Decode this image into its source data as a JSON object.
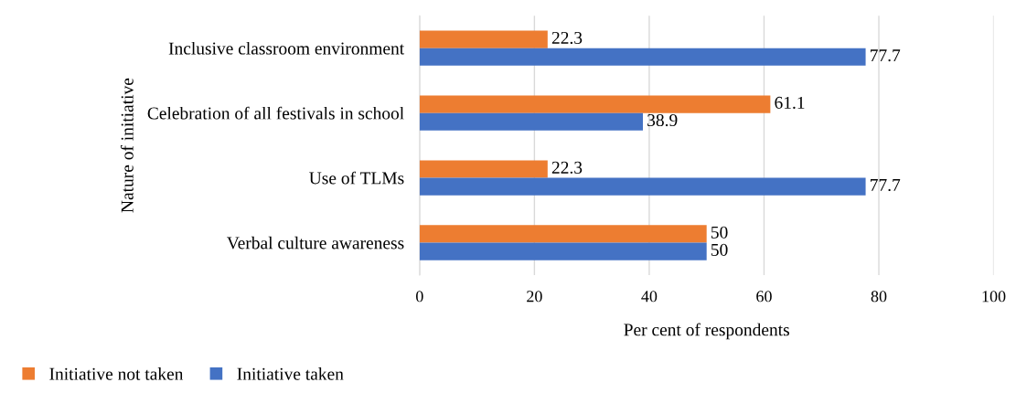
{
  "chart_data": {
    "type": "bar",
    "orientation": "horizontal",
    "xlabel": "Per cent of respondents",
    "ylabel": "Nature of initiative",
    "categories": [
      "Inclusive classroom environment",
      "Celebration of all festivals in school",
      "Use of TLMs",
      "Verbal culture awareness"
    ],
    "series": [
      {
        "name": "Initiative not taken",
        "color": "#ed7d31",
        "values": [
          22.3,
          61.1,
          22.3,
          50
        ]
      },
      {
        "name": "Initiative taken",
        "color": "#4472c4",
        "values": [
          77.7,
          38.9,
          77.7,
          50
        ]
      }
    ],
    "xlim": [
      0,
      100
    ],
    "xticks": [
      0,
      20,
      40,
      60,
      80,
      100
    ],
    "grid": "x",
    "legend": "bottom left",
    "data_labels": true
  }
}
